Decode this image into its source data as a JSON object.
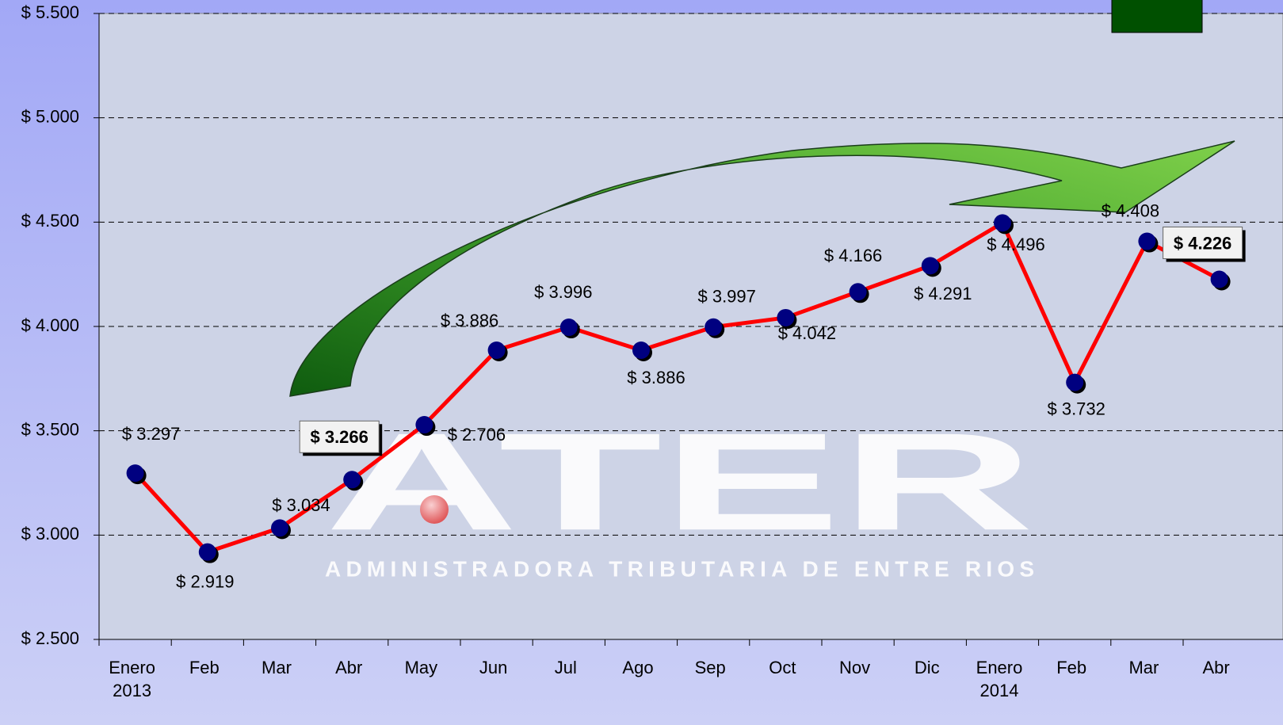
{
  "chart_data": {
    "type": "line",
    "categories": [
      "Enero 2013",
      "Feb",
      "Mar",
      "Abr",
      "May",
      "Jun",
      "Jul",
      "Ago",
      "Sep",
      "Oct",
      "Nov",
      "Dic",
      "Enero 2014",
      "Feb",
      "Mar",
      "Abr"
    ],
    "series": [
      {
        "color": "#ff0000",
        "marker_color": "#000080",
        "values": [
          3297,
          2919,
          3034,
          3266,
          3529,
          3886,
          3996,
          3886,
          3997,
          4042,
          4166,
          4291,
          4496,
          3732,
          4408,
          4226
        ],
        "value_labels": [
          "$ 3.297",
          "$ 2.919",
          "$ 3.034",
          "$ 3.266",
          null,
          "$ 3.886",
          "$ 3.996",
          "$ 3.886",
          "$ 3.997",
          "$ 4.042",
          "$ 4.166",
          "$ 4.291",
          "$ 4.496",
          "$ 3.732",
          "$ 4.408",
          "$ 4.226"
        ],
        "boxed_labels": [
          3,
          15
        ]
      }
    ],
    "ylim": [
      2500,
      5500
    ],
    "yticks": [
      {
        "value": 2500,
        "label": "$ 2.500"
      },
      {
        "value": 3000,
        "label": "$ 3.000"
      },
      {
        "value": 3500,
        "label": "$ 3.500"
      },
      {
        "value": 4000,
        "label": "$ 4.000"
      },
      {
        "value": 4500,
        "label": "$ 4.500"
      },
      {
        "value": 5000,
        "label": "$ 5.000"
      },
      {
        "value": 5500,
        "label": "$ 5.500"
      }
    ],
    "grid": true,
    "annotations": [
      "$ 2.706"
    ],
    "watermark": {
      "title": "ATER",
      "subtitle": "ADMINISTRADORA TRIBUTARIA DE ENTRE RIOS"
    }
  }
}
